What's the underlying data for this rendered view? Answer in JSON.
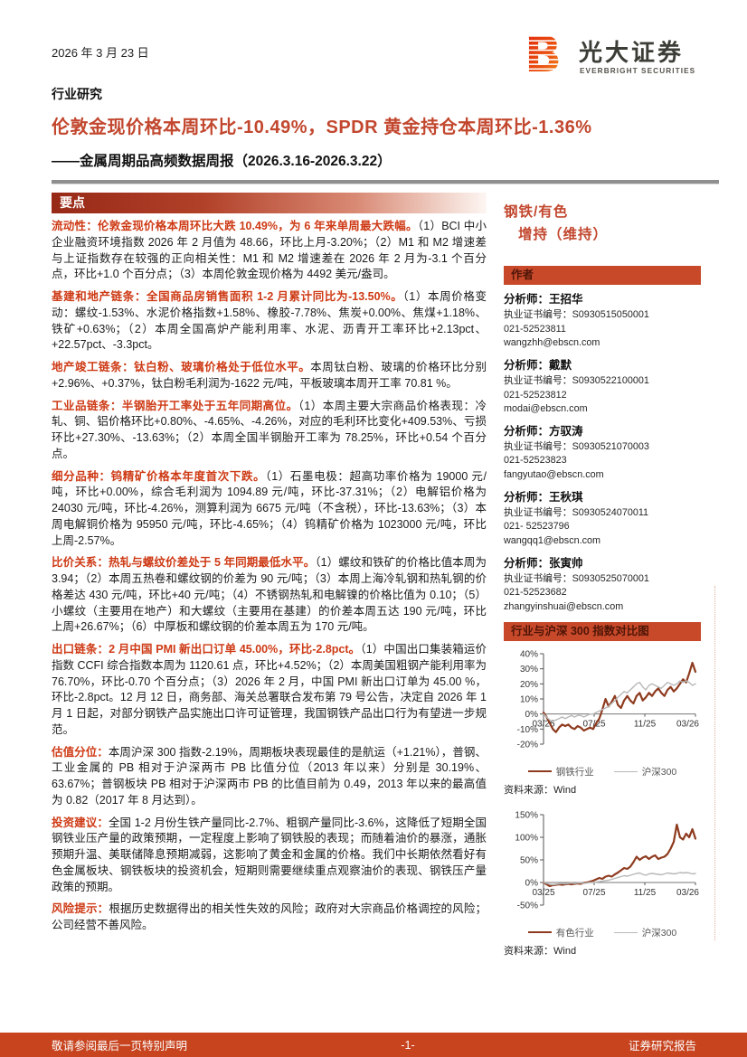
{
  "report": {
    "date": "2026 年 3 月 23 日",
    "category": "行业研究",
    "title": "伦敦金现价格本周环比-10.49%，SPDR 黄金持仓本周环比-1.36%",
    "subtitle": "——金属周期品高频数据周报（2026.3.16-2026.3.22）"
  },
  "logo": {
    "letter": "B",
    "name_cn": "光大证券",
    "name_en": "EVERBRIGHT SECURITIES"
  },
  "colors": {
    "accent": "#C2472E",
    "keyword_red": "#CE3A15",
    "bar_orange": "#C7492A",
    "steel_line": "#8E3B1F",
    "csi300_line": "#B8B8B8"
  },
  "key_points": {
    "header": "要点",
    "paragraphs": [
      {
        "lead": "流动性：伦敦金现价格本周环比大跌 10.49%，为 6 年来单周最大跌幅。",
        "rest": "（1）BCI 中小企业融资环境指数 2026 年 2 月值为 48.66，环比上月-3.20%；（2）M1 和 M2 增速差与上证指数存在较强的正向相关性：M1 和 M2 增速差在 2026 年 2 月为-3.1 个百分点，环比+1.0 个百分点；（3）本周伦敦金现价格为 4492 美元/盎司。"
      },
      {
        "lead": "基建和地产链条：全国商品房销售面积 1-2 月累计同比为-13.50%。",
        "rest": "（1）本周价格变动：螺纹-1.53%、水泥价格指数+1.58%、橡胶-7.78%、焦炭+0.00%、焦煤+1.18%、铁矿+0.63%；（2）本周全国高炉产能利用率、水泥、沥青开工率环比+2.13pct、+22.57pct、-3.3pct。"
      },
      {
        "lead": "地产竣工链条：钛白粉、玻璃价格处于低位水平。",
        "rest": "本周钛白粉、玻璃的价格环比分别+2.96%、+0.37%，钛白粉毛利润为-1622 元/吨，平板玻璃本周开工率 70.81 %。"
      },
      {
        "lead": "工业品链条：半钢胎开工率处于五年同期高位。",
        "rest": "（1）本周主要大宗商品价格表现：冷轧、铜、铝价格环比+0.80%、-4.65%、-4.26%，对应的毛利环比变化+409.53%、亏损环比+27.30%、-13.63%；（2）本周全国半钢胎开工率为 78.25%，环比+0.54 个百分点。"
      },
      {
        "lead": "细分品种：钨精矿价格本年度首次下跌。",
        "rest": "（1）石墨电极：超高功率价格为 19000 元/吨，环比+0.00%，综合毛利润为 1094.89 元/吨，环比-37.31%；（2）电解铝价格为 24030 元/吨，环比-4.26%，测算利润为 6675 元/吨（不含税），环比-13.63%；（3）本周电解铜价格为 95950 元/吨，环比-4.65%；（4）钨精矿价格为 1023000 元/吨，环比上周-2.57%。"
      },
      {
        "lead": "比价关系：热轧与螺纹价差处于 5 年同期最低水平。",
        "rest": "（1）螺纹和铁矿的价格比值本周为 3.94；（2）本周五热卷和螺纹钢的价差为 90 元/吨；（3）本周上海冷轧钢和热轧钢的价格差达 430 元/吨，环比+40 元/吨；（4）不锈钢热轧和电解镍的价格比值为 0.10；（5）小螺纹（主要用在地产）和大螺纹（主要用在基建）的价差本周五达 190 元/吨，环比上周+26.67%；（6）中厚板和螺纹钢的价差本周五为 170 元/吨。"
      },
      {
        "lead": "出口链条：2 月中国 PMI 新出口订单 45.00%，环比-2.8pct。",
        "rest": "（1）中国出口集装箱运价指数 CCFI 综合指数本周为 1120.61 点，环比+4.52%；（2）本周美国粗钢产能利用率为 76.70%，环比-0.70 个百分点；（3）2026 年 2 月，中国 PMI 新出口订单为 45.00 %，环比-2.8pct。12 月 12 日，商务部、海关总署联合发布第 79 号公告，决定自 2026 年 1 月 1 日起，对部分钢铁产品实施出口许可证管理，我国钢铁产品出口行为有望进一步规范。"
      },
      {
        "lead": "估值分位：",
        "rest": "本周沪深 300 指数-2.19%，周期板块表现最佳的是航运（+1.21%），普钢、工业金属的 PB 相对于沪深两市 PB 比值分位（2013 年以来）分别是 30.19%、63.67%；普钢板块 PB 相对于沪深两市 PB 的比值目前为 0.49，2013 年以来的最高值为 0.82（2017 年 8 月达到）。"
      },
      {
        "lead": "投资建议：",
        "rest": "全国 1-2 月份生铁产量同比-2.7%、粗钢产量同比-3.6%，这降低了短期全国钢铁业压产量的政策预期，一定程度上影响了钢铁股的表现；而随着油价的暴涨，通胀预期升温、美联储降息预期减弱，这影响了黄金和金属的价格。我们中长期依然看好有色金属板块、钢铁板块的投资机会，短期则需要继续重点观察油价的表现、钢铁压产量政策的预期。"
      },
      {
        "lead": "风险提示：",
        "rest": "根据历史数据得出的相关性失效的风险；政府对大宗商品价格调控的风险；公司经营不善风险。"
      }
    ]
  },
  "sidebar": {
    "industry": "钢铁/有色",
    "rating": "增持（维持）",
    "authors_header": "作者",
    "analyst_role": "分析师：",
    "authors": [
      {
        "name": "王招华",
        "cert": "执业证书编号：S0930515050001",
        "phone": "021-52523811",
        "email": "wangzhh@ebscn.com"
      },
      {
        "name": "戴默",
        "cert": "执业证书编号：S0930522100001",
        "phone": "021-52523812",
        "email": "modai@ebscn.com"
      },
      {
        "name": "方驭涛",
        "cert": "执业证书编号：S0930521070003",
        "phone": "021-52523823",
        "email": "fangyutao@ebscn.com"
      },
      {
        "name": "王秋琪",
        "cert": "执业证书编号：S0930524070011",
        "phone": "021- 52523796",
        "email": "wangqq1@ebscn.com"
      },
      {
        "name": "张寅帅",
        "cert": "执业证书编号：S0930525070001",
        "phone": "021-52523682",
        "email": "zhangyinshuai@ebscn.com"
      }
    ],
    "chart_header": "行业与沪深 300 指数对比图"
  },
  "footer": {
    "left": "敬请参阅最后一页特别声明",
    "center": "-1-",
    "right": "证券研究报告"
  },
  "chart_data": [
    {
      "type": "line",
      "title": "行业与沪深 300 指数对比图（钢铁行业）",
      "x_tick_labels": [
        "03/25",
        "07/25",
        "11/25",
        "03/26"
      ],
      "ylim": [
        -20,
        40
      ],
      "yticks": [
        40,
        30,
        20,
        10,
        0,
        -10,
        -20
      ],
      "ytick_suffix": "%",
      "grid": false,
      "legend_position": "bottom",
      "source": "资料来源：Wind",
      "series": [
        {
          "name": "钢铁行业",
          "color": "#8E3B1F",
          "width": 2.2,
          "values": [
            1,
            -2,
            -6,
            -10,
            -12,
            -9,
            -7,
            -8,
            -7,
            -9,
            -10,
            -8,
            -9,
            -11,
            -10,
            -9,
            -10,
            -6,
            -3,
            3,
            10,
            5,
            8,
            12,
            6,
            4,
            9,
            12,
            9,
            7,
            12,
            14,
            9,
            11,
            14,
            12,
            15,
            17,
            14,
            12,
            16,
            18,
            15,
            17,
            20,
            23,
            21,
            27,
            34,
            28
          ]
        },
        {
          "name": "沪深300",
          "color": "#B8B8B8",
          "width": 1.4,
          "values": [
            0,
            -2,
            -4,
            -5,
            -4,
            -3,
            -2,
            -3,
            -2,
            -1,
            -2,
            -1,
            -1,
            -2,
            -1,
            0,
            0,
            1,
            2,
            3,
            4,
            5,
            7,
            9,
            11,
            13,
            15,
            14,
            16,
            18,
            20,
            21,
            18,
            16,
            19,
            20,
            19,
            18,
            17,
            19,
            21,
            20,
            19,
            20,
            22,
            21,
            22,
            21,
            19,
            20
          ]
        }
      ]
    },
    {
      "type": "line",
      "title": "行业与沪深 300 指数对比图（有色行业）",
      "x_tick_labels": [
        "03/25",
        "07/25",
        "11/25",
        "03/26"
      ],
      "ylim": [
        -50,
        150
      ],
      "yticks": [
        150,
        100,
        50,
        0,
        -50
      ],
      "ytick_suffix": "%",
      "grid": false,
      "legend_position": "bottom",
      "source": "资料来源：Wind",
      "series": [
        {
          "name": "有色行业",
          "color": "#8E3B1F",
          "width": 2.2,
          "values": [
            0,
            -4,
            -8,
            -6,
            -5,
            -4,
            -5,
            -4,
            -3,
            -4,
            -3,
            -2,
            -3,
            -1,
            0,
            2,
            4,
            7,
            10,
            8,
            13,
            15,
            13,
            18,
            22,
            27,
            32,
            30,
            35,
            45,
            57,
            50,
            55,
            58,
            52,
            57,
            60,
            52,
            55,
            57,
            63,
            75,
            90,
            128,
            100,
            95,
            108,
            100,
            118,
            97
          ]
        },
        {
          "name": "沪深300",
          "color": "#B8B8B8",
          "width": 1.4,
          "values": [
            0,
            -2,
            -4,
            -5,
            -4,
            -3,
            -2,
            -3,
            -2,
            -1,
            -2,
            -1,
            -1,
            -2,
            -1,
            0,
            0,
            1,
            2,
            3,
            4,
            5,
            7,
            9,
            11,
            13,
            15,
            14,
            16,
            18,
            20,
            21,
            18,
            16,
            19,
            20,
            19,
            18,
            17,
            19,
            21,
            20,
            19,
            20,
            22,
            21,
            22,
            21,
            19,
            20
          ]
        }
      ]
    }
  ]
}
